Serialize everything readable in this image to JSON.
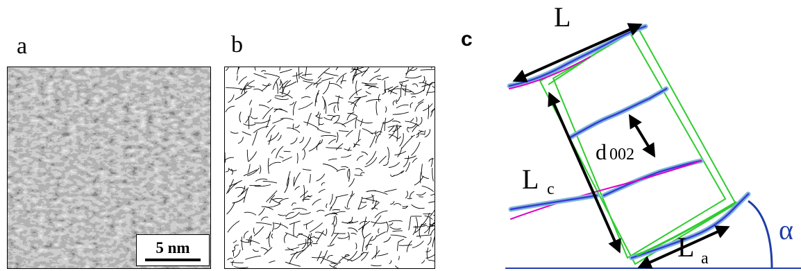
{
  "panels": {
    "a": {
      "label": "a",
      "scale_bar": "5 nm"
    },
    "b": {
      "label": "b"
    },
    "c": {
      "label": "c",
      "labels": {
        "L": "L",
        "d002_main": "d",
        "d002_sub": "002",
        "Lc_main": "L",
        "Lc_sub": "c",
        "La_main": "L",
        "La_sub": "a",
        "alpha": "α"
      }
    }
  },
  "colors": {
    "fringe_blue": "#3a3ad6",
    "fringe_highlight": "#7fb8d8",
    "fringe_magenta": "#e000c8",
    "box_green": "#2ecc2e",
    "angle_blue": "#1f3ea8",
    "arrow_black": "#000000"
  }
}
